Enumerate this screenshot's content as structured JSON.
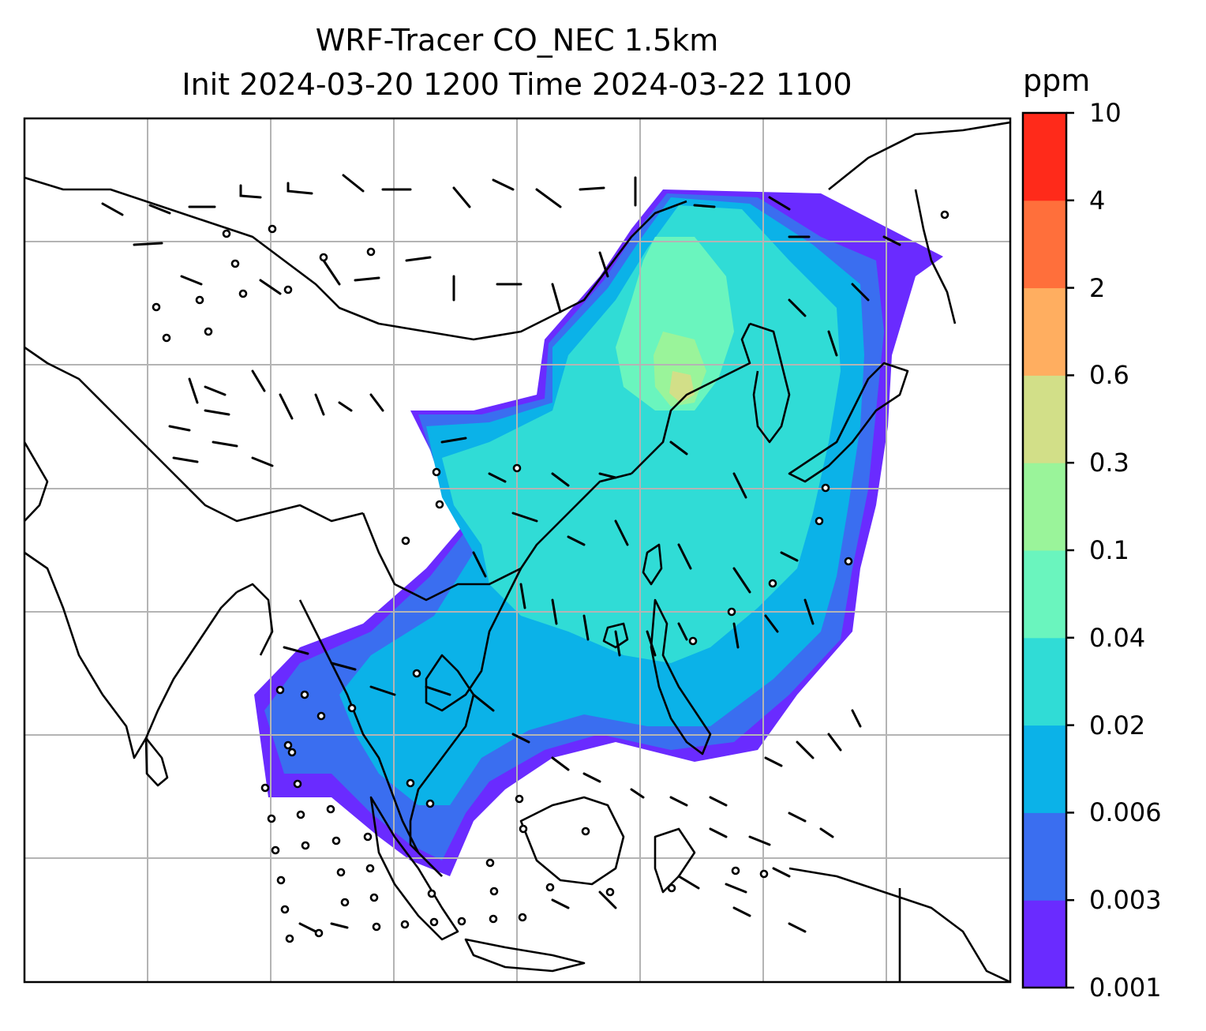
{
  "title": {
    "line1": "WRF-Tracer CO_NEC 1.5km",
    "line2": "Init 2024-03-20 1200 Time 2024-03-22 1100"
  },
  "colorbar": {
    "unit": "ppm",
    "ticks": [
      "0.001",
      "0.003",
      "0.006",
      "0.02",
      "0.04",
      "0.1",
      "0.3",
      "0.6",
      "2",
      "4",
      "10"
    ],
    "colors": [
      "#6a2bff",
      "#3a6ef0",
      "#0bb2e8",
      "#30dcd6",
      "#6af5be",
      "#9af49a",
      "#d2df88",
      "#ffae60",
      "#ff6f3b",
      "#ff2a1a"
    ]
  },
  "map": {
    "gridlines": true,
    "gridline_color": "#b4b4b4",
    "coastline_color": "#000000",
    "field_name": "CO_NEC",
    "legend_note": "calm-circles-and-wind-barbs"
  }
}
